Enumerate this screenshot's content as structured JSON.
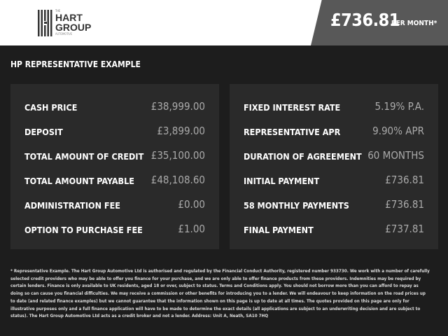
{
  "brand": {
    "the": "THE",
    "name_line1": "HART",
    "name_line2": "GROUP",
    "sub": "AUTOMOTIVE"
  },
  "header": {
    "price": "£736.81",
    "per_month": "PER MONTH*"
  },
  "section_title": "HP REPRESENTATIVE EXAMPLE",
  "left_rows": [
    {
      "label": "CASH PRICE",
      "value": "£38,999.00"
    },
    {
      "label": "DEPOSIT",
      "value": "£3,899.00"
    },
    {
      "label": "TOTAL AMOUNT OF CREDIT",
      "value": "£35,100.00"
    },
    {
      "label": "TOTAL AMOUNT PAYABLE",
      "value": "£48,108.60"
    },
    {
      "label": "ADMINISTRATION FEE",
      "value": "£0.00"
    },
    {
      "label": "OPTION TO PURCHASE FEE",
      "value": "£1.00"
    }
  ],
  "right_rows": [
    {
      "label": "FIXED INTEREST RATE",
      "value": "5.19% P.A."
    },
    {
      "label": "REPRESENTATIVE APR",
      "value": "9.90% APR"
    },
    {
      "label": "DURATION OF AGREEMENT",
      "value": "60 MONTHS"
    },
    {
      "label": "INITIAL PAYMENT",
      "value": "£736.81"
    },
    {
      "label": "58 MONTHLY PAYMENTS",
      "value": "£736.81"
    },
    {
      "label": "FINAL PAYMENT",
      "value": "£737.81"
    }
  ],
  "disclaimer": "* Representative Example. The Hart Group Automotive Ltd is authorised and regulated by the Financial Conduct Authority, registered number 933730. We work with a number of carefully selected credit providers who may be able to offer you finance for your purchase, and we are only able to offer finance products from these providers. Indemnities may be required by certain lenders. Finance is only available to UK residents, aged 18 or over, subject to status. Terms and Conditions apply. You should not borrow more than you can afford to repay as doing so can cause you financial difficulties. We may receive a commission or other benefits for introducing you to a lender. We will endeavour to keep information on the road prices up to date (and related finance examples) but we cannot guarantee that the information shown on this page is up to date at all times. The quotes provided on this page are only for illustrative purposes only and a full finance application will have to be made to determine the exact details (all applications are subject to an underwriting decision and are subject to status). The Hart Group Automotive Ltd acts as a credit broker and not a lender. Address: Unit A, Neath, SA10 7HQ"
}
